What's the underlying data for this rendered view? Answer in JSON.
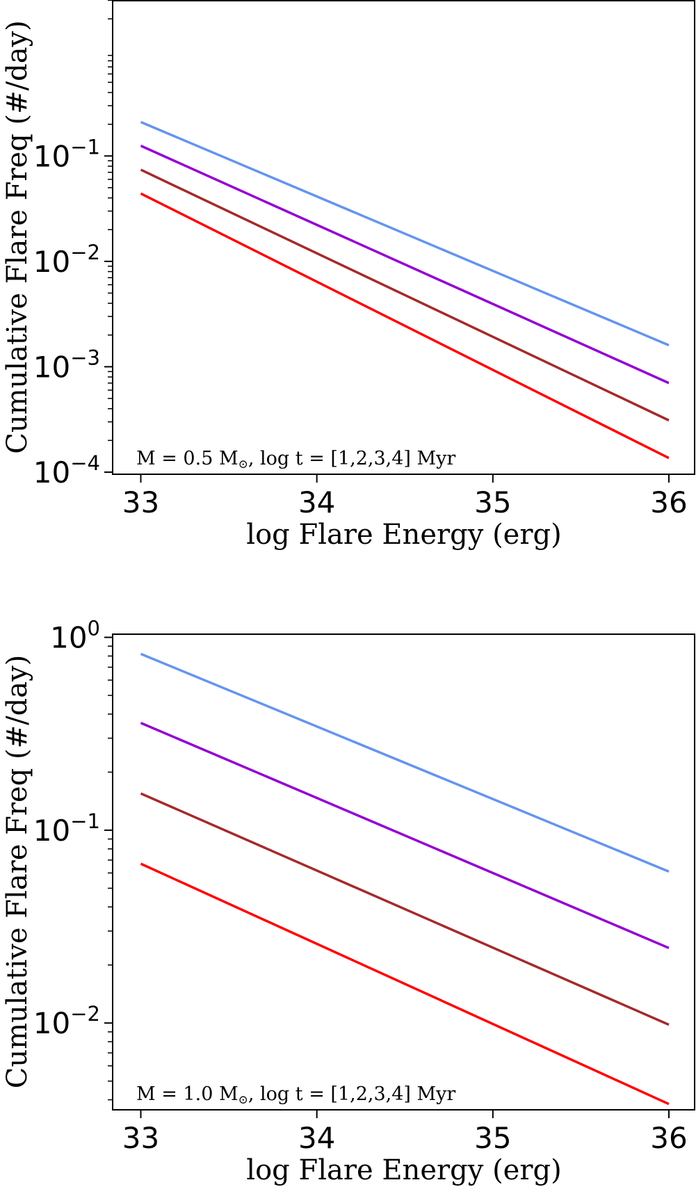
{
  "chart_data": [
    {
      "type": "line",
      "xlabel": "log Flare Energy (erg)",
      "ylabel": "Cumulative Flare Freq (#/day)",
      "yscale": "log",
      "xlim": [
        32.84,
        36.15
      ],
      "ylim_log10": [
        -4.02,
        0.48
      ],
      "xticks": [
        {
          "value": 33,
          "label": "33"
        },
        {
          "value": 34,
          "label": "34"
        },
        {
          "value": 35,
          "label": "35"
        },
        {
          "value": 36,
          "label": "36"
        }
      ],
      "yticks": [
        {
          "exp": -1,
          "base": "10",
          "sup": "−1"
        },
        {
          "exp": -2,
          "base": "10",
          "sup": "−2"
        },
        {
          "exp": -3,
          "base": "10",
          "sup": "−3"
        },
        {
          "exp": -4,
          "base": "10",
          "sup": "−4"
        }
      ],
      "annotation": {
        "pre": "M = 0.5 M",
        "sub": "⊙",
        "post": ", log t = [1,2,3,4] Myr"
      },
      "series": [
        {
          "name": "log t = 1",
          "color": "#6495ed",
          "x": [
            33,
            36
          ],
          "y": [
            0.21,
            0.0016
          ]
        },
        {
          "name": "log t = 2",
          "color": "#9400d3",
          "x": [
            33,
            36
          ],
          "y": [
            0.125,
            0.0007
          ]
        },
        {
          "name": "log t = 3",
          "color": "#a52a2a",
          "x": [
            33,
            36
          ],
          "y": [
            0.074,
            0.00031
          ]
        },
        {
          "name": "log t = 4",
          "color": "#ff0000",
          "x": [
            33,
            36
          ],
          "y": [
            0.044,
            0.000136
          ]
        }
      ]
    },
    {
      "type": "line",
      "xlabel": "log Flare Energy (erg)",
      "ylabel": "Cumulative Flare Freq (#/day)",
      "yscale": "log",
      "xlim": [
        32.84,
        36.15
      ],
      "ylim_log10": [
        -2.45,
        0.02
      ],
      "xticks": [
        {
          "value": 33,
          "label": "33"
        },
        {
          "value": 34,
          "label": "34"
        },
        {
          "value": 35,
          "label": "35"
        },
        {
          "value": 36,
          "label": "36"
        }
      ],
      "yticks": [
        {
          "exp": 0,
          "base": "10",
          "sup": "0"
        },
        {
          "exp": -1,
          "base": "10",
          "sup": "−1"
        },
        {
          "exp": -2,
          "base": "10",
          "sup": "−2"
        }
      ],
      "annotation": {
        "pre": "M = 1.0 M",
        "sub": "⊙",
        "post": ", log t = [1,2,3,4] Myr"
      },
      "series": [
        {
          "name": "log t = 1",
          "color": "#6495ed",
          "x": [
            33,
            36
          ],
          "y": [
            0.82,
            0.061
          ]
        },
        {
          "name": "log t = 2",
          "color": "#9400d3",
          "x": [
            33,
            36
          ],
          "y": [
            0.36,
            0.0245
          ]
        },
        {
          "name": "log t = 3",
          "color": "#a52a2a",
          "x": [
            33,
            36
          ],
          "y": [
            0.155,
            0.0098
          ]
        },
        {
          "name": "log t = 4",
          "color": "#ff0000",
          "x": [
            33,
            36
          ],
          "y": [
            0.067,
            0.0038
          ]
        }
      ]
    }
  ]
}
